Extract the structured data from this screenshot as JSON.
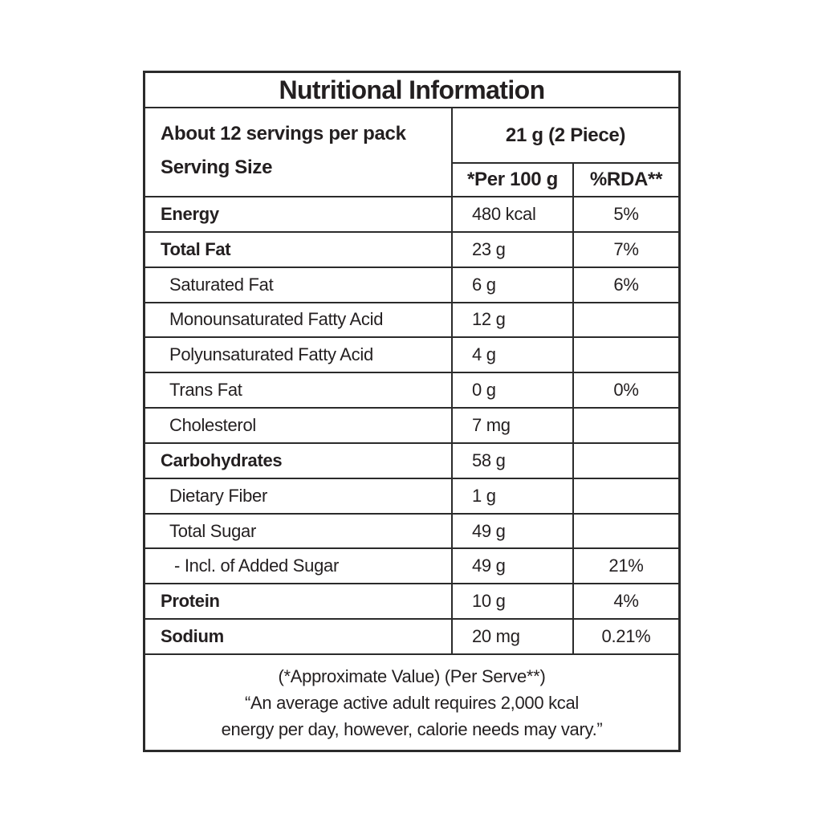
{
  "title": "Nutritional Information",
  "header": {
    "servings_line": "About 12 servings per pack",
    "serving_size_line": "Serving Size",
    "serving_amount": "21 g (2 Piece)",
    "per_100g": "*Per 100 g",
    "rda": "%RDA**"
  },
  "rows": [
    {
      "label": "Energy",
      "value": "480 kcal",
      "rda": "5%"
    },
    {
      "label": "Total Fat",
      "value": "23 g",
      "rda": "7%"
    },
    {
      "label": "Saturated Fat",
      "value": "6 g",
      "rda": "6%"
    },
    {
      "label": "Monounsaturated Fatty Acid",
      "value": "12 g",
      "rda": ""
    },
    {
      "label": "Polyunsaturated Fatty Acid",
      "value": "4 g",
      "rda": ""
    },
    {
      "label": "Trans Fat",
      "value": "0 g",
      "rda": "0%"
    },
    {
      "label": "Cholesterol",
      "value": "7 mg",
      "rda": ""
    },
    {
      "label": "Carbohydrates",
      "value": "58 g",
      "rda": ""
    },
    {
      "label": "Dietary Fiber",
      "value": "1 g",
      "rda": ""
    },
    {
      "label": "Total Sugar",
      "value": "49 g",
      "rda": ""
    },
    {
      "label": "- Incl. of Added Sugar",
      "value": "49 g",
      "rda": "21%"
    },
    {
      "label": "Protein",
      "value": "10 g",
      "rda": "4%"
    },
    {
      "label": "Sodium",
      "value": "20 mg",
      "rda": "0.21%"
    }
  ],
  "footer": {
    "line1": "(*Approximate Value) (Per Serve**)",
    "line2": "“An average active adult requires 2,000 kcal",
    "line3": "energy per day, however, calorie needs may vary.”"
  },
  "colors": {
    "text": "#231f20",
    "border": "#2b2b2b",
    "background": "#ffffff"
  }
}
